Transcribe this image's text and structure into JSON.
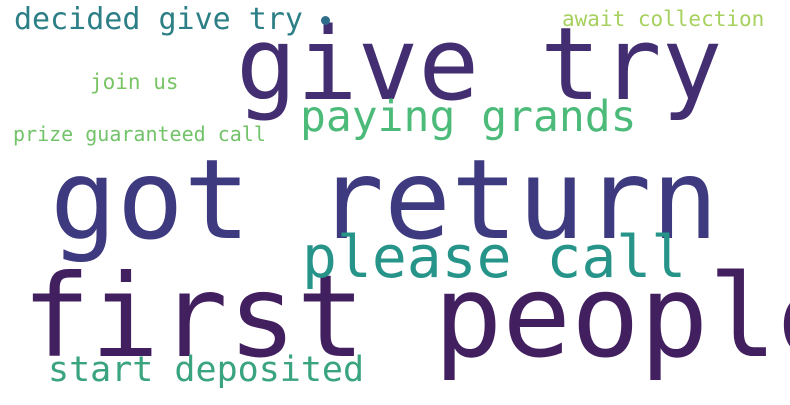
{
  "words": [
    {
      "text": "got return",
      "color": "#3e3a7f"
    },
    {
      "text": "first people",
      "color": "#421f5f"
    },
    {
      "text": "give try",
      "color": "#432e72"
    },
    {
      "text": "please call",
      "color": "#27948a"
    },
    {
      "text": "paying grands",
      "color": "#4cbb7a"
    },
    {
      "text": "decided give try",
      "color": "#2c7f86"
    },
    {
      "text": "start deposited",
      "color": "#3aa47f"
    },
    {
      "text": "await collection",
      "color": "#a7d15e"
    },
    {
      "text": "join us",
      "color": "#79c464"
    },
    {
      "text": "prize guaranteed call",
      "color": "#72c36a"
    }
  ],
  "dot_color": "#2e6e8a"
}
